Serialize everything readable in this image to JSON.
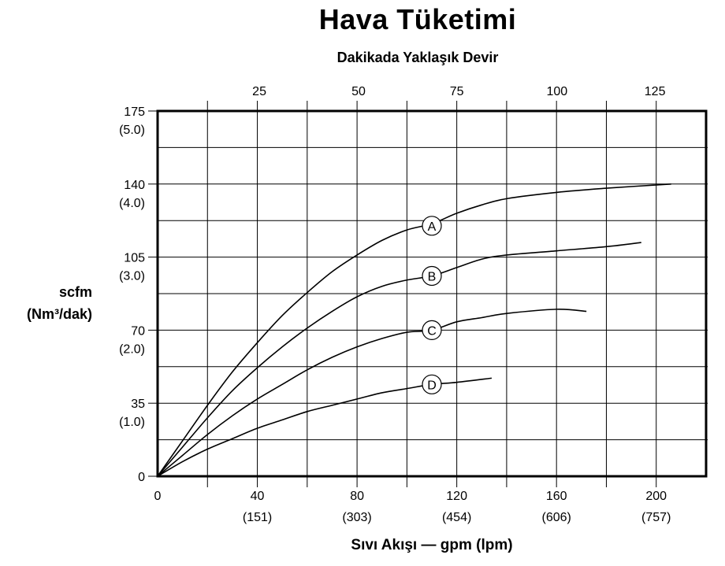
{
  "chart_data": {
    "type": "line",
    "title": "Hava Tüketimi",
    "subtitle": "Dakikada Yaklaşık Devir",
    "ylabel_main": "scfm",
    "ylabel_sub": "(Nm³/dak)",
    "xlabel": "Sıvı Akışı — gpm (lpm)",
    "xlim": [
      0,
      220
    ],
    "ylim": [
      0,
      175
    ],
    "x_ticks": [
      {
        "value": 0,
        "label": "0",
        "sub": ""
      },
      {
        "value": 40,
        "label": "40",
        "sub": "(151)"
      },
      {
        "value": 80,
        "label": "80",
        "sub": "(303)"
      },
      {
        "value": 120,
        "label": "120",
        "sub": "(454)"
      },
      {
        "value": 160,
        "label": "160",
        "sub": "(606)"
      },
      {
        "value": 200,
        "label": "200",
        "sub": "(757)"
      }
    ],
    "y_ticks": [
      {
        "value": 0,
        "label": "0",
        "sub": ""
      },
      {
        "value": 35,
        "label": "35",
        "sub": "(1.0)"
      },
      {
        "value": 70,
        "label": "70",
        "sub": "(2.0)"
      },
      {
        "value": 105,
        "label": "105",
        "sub": "(3.0)"
      },
      {
        "value": 140,
        "label": "140",
        "sub": "(4.0)"
      },
      {
        "value": 175,
        "label": "175",
        "sub": "(5.0)"
      }
    ],
    "top_axis_ticks": [
      {
        "x": 40.8,
        "label": "25"
      },
      {
        "x": 80.6,
        "label": "50"
      },
      {
        "x": 120,
        "label": "75"
      },
      {
        "x": 160.2,
        "label": "100"
      },
      {
        "x": 199.5,
        "label": "125"
      }
    ],
    "grid": true,
    "series": [
      {
        "name": "A",
        "label_x": 110,
        "label_y": 120,
        "x": [
          0,
          10,
          20,
          30,
          40,
          50,
          60,
          70,
          80,
          90,
          100,
          110,
          120,
          130,
          140,
          160,
          180,
          206
        ],
        "y": [
          0,
          17,
          34,
          50,
          64,
          77,
          88,
          98,
          106,
          113,
          118,
          121,
          126,
          130,
          133,
          136,
          138,
          140
        ]
      },
      {
        "name": "B",
        "label_x": 110,
        "label_y": 96,
        "x": [
          0,
          10,
          20,
          30,
          40,
          50,
          60,
          70,
          80,
          90,
          100,
          110,
          120,
          130,
          140,
          160,
          180,
          194
        ],
        "y": [
          0,
          14,
          28,
          41,
          52,
          62,
          71,
          79,
          86,
          91,
          94,
          96,
          100,
          104,
          106,
          108,
          110,
          112
        ]
      },
      {
        "name": "C",
        "label_x": 110,
        "label_y": 70,
        "x": [
          0,
          10,
          20,
          30,
          40,
          50,
          60,
          70,
          80,
          90,
          100,
          110,
          120,
          130,
          140,
          160,
          172
        ],
        "y": [
          0,
          10,
          20,
          29,
          37,
          44,
          51,
          57,
          62,
          66,
          69,
          70,
          74,
          76,
          78,
          80,
          79
        ]
      },
      {
        "name": "D",
        "label_x": 110,
        "label_y": 44,
        "x": [
          0,
          10,
          20,
          30,
          40,
          50,
          60,
          70,
          80,
          90,
          100,
          110,
          120,
          134
        ],
        "y": [
          0,
          7,
          13,
          18,
          23,
          27,
          31,
          34,
          37,
          40,
          42,
          44,
          45,
          47
        ]
      }
    ]
  }
}
